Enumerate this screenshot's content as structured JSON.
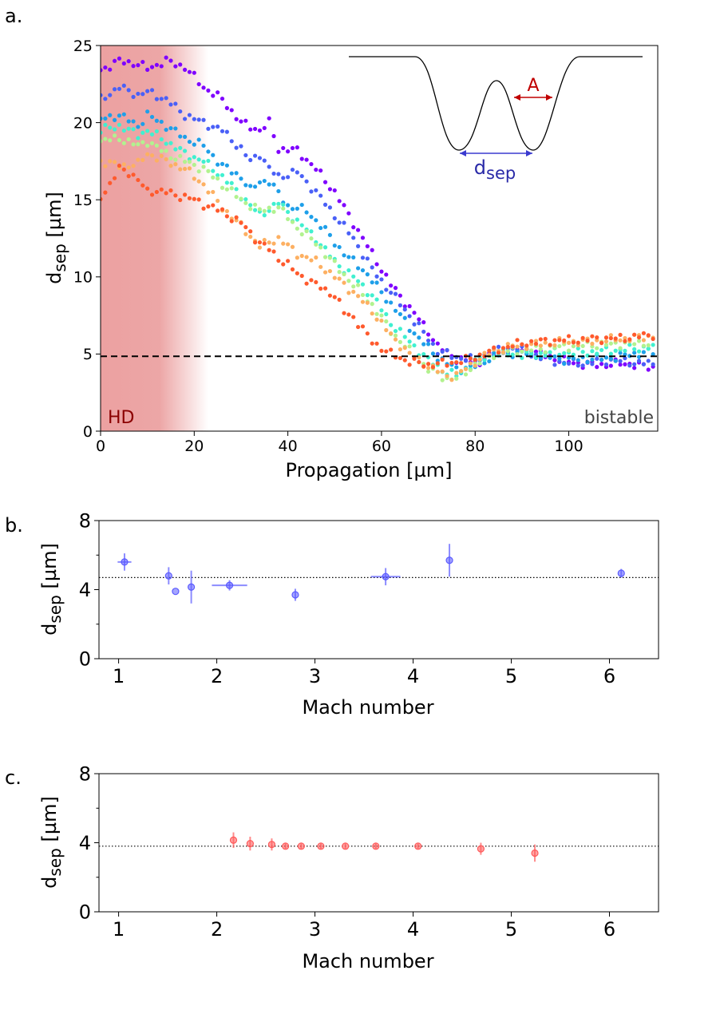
{
  "chart_data": [
    {
      "panel_label": "a.",
      "type": "scatter",
      "title": "",
      "xlabel": "Propagation [µm]",
      "ylabel_main": "d",
      "ylabel_sub": "sep",
      "ylabel_unit": " [µm]",
      "xlim": [
        0,
        119
      ],
      "ylim": [
        0,
        25
      ],
      "xticks": [
        0,
        20,
        40,
        60,
        80,
        100
      ],
      "yticks": [
        0,
        5,
        10,
        15,
        20,
        25
      ],
      "reference_line": 4.85,
      "hd_region": [
        0,
        23
      ],
      "region_labels": {
        "left": "HD",
        "right": "bistable"
      },
      "inset": {
        "gap_label": "A",
        "sep_label_main": "d",
        "sep_label_sub": "sep"
      },
      "series": [
        {
          "name": "trace-1",
          "color": "#7f00ff",
          "x": [
            0,
            4,
            8,
            10,
            14,
            18,
            22,
            26,
            30,
            34,
            36,
            38,
            42,
            46,
            50,
            54,
            58,
            62,
            66,
            70,
            72,
            76,
            80,
            84,
            88,
            92,
            96,
            100,
            104,
            108,
            112,
            116,
            119
          ],
          "y": [
            23.4,
            24,
            23.8,
            23.5,
            24,
            23.6,
            22.3,
            21.5,
            20,
            19.5,
            20,
            18.3,
            18.2,
            17,
            15.5,
            13.5,
            11.5,
            9.5,
            8,
            6.5,
            5.5,
            4.7,
            4.4,
            5,
            5.3,
            5.2,
            4.8,
            4.5,
            4.3,
            4.3,
            4.4,
            4.2,
            4.1
          ]
        },
        {
          "name": "trace-2",
          "color": "#4a60f7",
          "x": [
            0,
            4,
            8,
            10,
            14,
            18,
            22,
            26,
            30,
            32,
            34,
            36,
            38,
            42,
            46,
            50,
            54,
            58,
            62,
            66,
            70,
            72,
            76,
            80,
            84,
            88,
            92,
            96,
            100,
            104,
            108,
            112,
            116,
            119
          ],
          "y": [
            21.5,
            22.3,
            21.8,
            22,
            21.5,
            20.5,
            20,
            19.5,
            18.3,
            17.5,
            18,
            17,
            16.5,
            16.8,
            15.5,
            14,
            12.5,
            10.5,
            9,
            7.5,
            6,
            5.2,
            4.8,
            4.6,
            5.2,
            5.4,
            5,
            4.6,
            4.4,
            4.4,
            4.6,
            4.5,
            4.4,
            4.3
          ]
        },
        {
          "name": "trace-3",
          "color": "#1e9fe9",
          "x": [
            0,
            4,
            8,
            10,
            14,
            18,
            22,
            26,
            30,
            32,
            34,
            36,
            40,
            44,
            48,
            52,
            56,
            60,
            64,
            68,
            72,
            76,
            80,
            84,
            88,
            92,
            96,
            100,
            104,
            108,
            112,
            116,
            119
          ],
          "y": [
            20.2,
            20.5,
            19.8,
            20.5,
            19.8,
            19,
            18.5,
            17.2,
            16.5,
            15.6,
            16.2,
            16.2,
            14.6,
            14.3,
            13,
            11.5,
            10.5,
            9,
            7.5,
            6,
            4.8,
            4,
            4.2,
            4.9,
            5.1,
            5,
            4.8,
            4.6,
            4.7,
            4.7,
            4.9,
            5.1,
            5.1
          ]
        },
        {
          "name": "trace-4",
          "color": "#40f0d0",
          "x": [
            0,
            4,
            8,
            10,
            14,
            18,
            22,
            26,
            30,
            34,
            38,
            42,
            46,
            50,
            54,
            58,
            62,
            66,
            70,
            74,
            76,
            80,
            84,
            88,
            92,
            96,
            100,
            104,
            108,
            112,
            116,
            119
          ],
          "y": [
            19.5,
            19.8,
            19.2,
            19.5,
            18.8,
            18,
            17.5,
            16.5,
            15.3,
            14,
            14.8,
            13.6,
            12.5,
            11,
            10,
            8.8,
            7,
            5.8,
            4.6,
            3.8,
            3.6,
            4.5,
            5,
            5,
            4.9,
            5.1,
            5.1,
            5.1,
            5.2,
            5.3,
            5.4,
            5.5
          ]
        },
        {
          "name": "trace-5",
          "color": "#b2f28f",
          "x": [
            0,
            4,
            8,
            10,
            14,
            18,
            22,
            26,
            30,
            34,
            38,
            42,
            46,
            50,
            54,
            58,
            62,
            66,
            70,
            74,
            76,
            80,
            84,
            88,
            92,
            96,
            100,
            104,
            108,
            112,
            116,
            119
          ],
          "y": [
            18.8,
            19,
            18.5,
            18.8,
            18,
            17.5,
            17,
            16,
            15,
            14.3,
            14.5,
            13.2,
            12.2,
            10.8,
            9.5,
            8.2,
            6.5,
            5.2,
            4,
            3.4,
            3.4,
            4.3,
            5,
            5.2,
            5.3,
            5.4,
            5.5,
            5.6,
            5.6,
            5.7,
            5.7,
            5.8
          ]
        },
        {
          "name": "trace-6",
          "color": "#fdb062",
          "x": [
            0,
            4,
            8,
            10,
            14,
            18,
            22,
            26,
            30,
            34,
            38,
            42,
            46,
            50,
            54,
            58,
            62,
            66,
            70,
            74,
            76,
            80,
            84,
            88,
            92,
            96,
            100,
            104,
            108,
            112,
            116,
            119
          ],
          "y": [
            17.5,
            17.2,
            17.3,
            18,
            17.5,
            17,
            16,
            14.5,
            13.3,
            12,
            12.5,
            11.5,
            11,
            10,
            9,
            7.8,
            6.2,
            5,
            4.2,
            3.6,
            3.6,
            4.5,
            5.2,
            5.5,
            5.6,
            5.7,
            5.8,
            5.8,
            5.9,
            6,
            6.1,
            6.2
          ]
        },
        {
          "name": "trace-7",
          "color": "#ff5a2d",
          "x": [
            0,
            2,
            4,
            6,
            8,
            10,
            12,
            14,
            16,
            18,
            20,
            22,
            24,
            26,
            30,
            34,
            36,
            38,
            40,
            42,
            46,
            50,
            52,
            54,
            58,
            62,
            66,
            70,
            74,
            78,
            82,
            86,
            90,
            94,
            98,
            102,
            106,
            110,
            114,
            119
          ],
          "y": [
            15.2,
            16,
            17,
            16.8,
            16.3,
            15.5,
            15.6,
            15.5,
            15.3,
            15.2,
            15,
            14.7,
            14.5,
            14.2,
            13.5,
            12.2,
            11.8,
            11.2,
            10.8,
            10.2,
            9.5,
            8.8,
            7.7,
            7.4,
            5.8,
            5,
            4.5,
            4.3,
            4.4,
            4.6,
            5,
            5.4,
            5.7,
            5.8,
            5.9,
            5.9,
            6,
            6,
            6.1,
            6.3
          ]
        }
      ]
    },
    {
      "panel_label": "b.",
      "type": "scatter",
      "xlabel": "Mach number",
      "ylabel_main": "d",
      "ylabel_sub": "sep",
      "ylabel_unit": " [µm]",
      "xlim": [
        0.8,
        6.5
      ],
      "ylim": [
        0,
        8
      ],
      "xticks": [
        1,
        2,
        3,
        4,
        5,
        6
      ],
      "yticks": [
        0,
        4,
        8
      ],
      "reference_line": 4.7,
      "series": [
        {
          "name": "blue",
          "color": "#5b5bff",
          "points": [
            {
              "x": 1.06,
              "y": 5.6,
              "xerr": 0.07,
              "yerr": 0.5
            },
            {
              "x": 1.51,
              "y": 4.8,
              "xerr": 0.0,
              "yerr": 0.5
            },
            {
              "x": 1.58,
              "y": 3.9,
              "xerr": 0.0,
              "yerr": 0.0
            },
            {
              "x": 1.74,
              "y": 4.15,
              "xerr": 0.0,
              "yerr": 0.95
            },
            {
              "x": 2.13,
              "y": 4.25,
              "xerr": 0.18,
              "yerr": 0.3
            },
            {
              "x": 2.8,
              "y": 3.7,
              "xerr": 0.0,
              "yerr": 0.35
            },
            {
              "x": 3.72,
              "y": 4.75,
              "xerr": 0.15,
              "yerr": 0.5
            },
            {
              "x": 4.37,
              "y": 5.7,
              "xerr": 0.0,
              "yerr": 0.95
            },
            {
              "x": 6.12,
              "y": 4.95,
              "xerr": 0.0,
              "yerr": 0.25
            }
          ]
        }
      ]
    },
    {
      "panel_label": "c.",
      "type": "scatter",
      "xlabel": "Mach number",
      "ylabel_main": "d",
      "ylabel_sub": "sep",
      "ylabel_unit": " [µm]",
      "xlim": [
        0.8,
        6.5
      ],
      "ylim": [
        0,
        8
      ],
      "xticks": [
        1,
        2,
        3,
        4,
        5,
        6
      ],
      "yticks": [
        0,
        4,
        8
      ],
      "reference_line": 3.8,
      "series": [
        {
          "name": "red",
          "color": "#ff5a5a",
          "points": [
            {
              "x": 2.17,
              "y": 4.15,
              "xerr": 0.0,
              "yerr": 0.45
            },
            {
              "x": 2.34,
              "y": 3.95,
              "xerr": 0.0,
              "yerr": 0.4
            },
            {
              "x": 2.56,
              "y": 3.9,
              "xerr": 0.0,
              "yerr": 0.35
            },
            {
              "x": 2.7,
              "y": 3.8,
              "xerr": 0.0,
              "yerr": 0.15
            },
            {
              "x": 2.86,
              "y": 3.8,
              "xerr": 0.0,
              "yerr": 0.15
            },
            {
              "x": 3.06,
              "y": 3.8,
              "xerr": 0.0,
              "yerr": 0.15
            },
            {
              "x": 3.31,
              "y": 3.8,
              "xerr": 0.0,
              "yerr": 0.15
            },
            {
              "x": 3.62,
              "y": 3.8,
              "xerr": 0.0,
              "yerr": 0.15
            },
            {
              "x": 4.05,
              "y": 3.8,
              "xerr": 0.0,
              "yerr": 0.15
            },
            {
              "x": 4.69,
              "y": 3.65,
              "xerr": 0.0,
              "yerr": 0.35
            },
            {
              "x": 5.24,
              "y": 3.4,
              "xerr": 0.0,
              "yerr": 0.5
            }
          ]
        }
      ]
    }
  ]
}
